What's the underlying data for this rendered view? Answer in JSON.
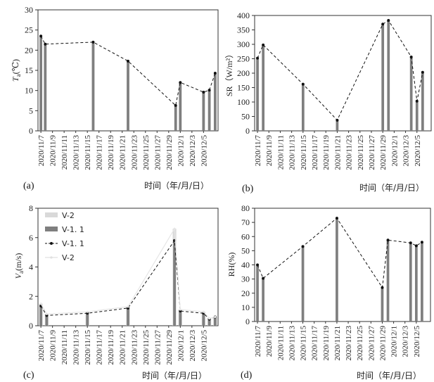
{
  "chart_data": [
    {
      "type": "bar",
      "panel_label": "(a)",
      "ylabel_main": "T",
      "ylabel_sub": "a",
      "ylabel_unit": "(℃)",
      "xlabel": "时间（年/月/日）",
      "ylim": [
        0,
        30
      ],
      "yticks": [
        0,
        5,
        10,
        15,
        20,
        25,
        30
      ],
      "categories": [
        "2020/11/7",
        "2020/11/9",
        "2020/11/11",
        "2020/11/13",
        "2020/11/15",
        "2020/11/17",
        "2020/11/19",
        "2020/11/21",
        "2020/11/23",
        "2020/11/25",
        "2020/11/27",
        "2020/11/29",
        "2020/12/1",
        "2020/12/3",
        "2020/12/5"
      ],
      "series": [
        {
          "style": "bar",
          "points": [
            [
              0,
              23.5
            ],
            [
              0.75,
              21.5
            ],
            [
              9,
              22
            ],
            [
              15,
              17.3
            ],
            [
              23.2,
              6.3
            ],
            [
              24,
              12
            ],
            [
              28,
              9.6
            ],
            [
              29,
              10.1
            ],
            [
              30,
              14.3
            ]
          ]
        },
        {
          "style": "dashed-line",
          "points": [
            [
              0,
              23.5
            ],
            [
              0.75,
              21.5
            ],
            [
              9,
              22
            ],
            [
              15,
              17.3
            ],
            [
              23.2,
              6.3
            ],
            [
              24,
              12
            ],
            [
              28,
              9.6
            ],
            [
              29,
              10.1
            ],
            [
              30,
              14.3
            ]
          ]
        }
      ]
    },
    {
      "type": "bar",
      "panel_label": "(b)",
      "ylabel_main": "SR",
      "ylabel_unit": "（W/m²）",
      "xlabel": "时间（年/月/日）",
      "ylim": [
        0,
        400
      ],
      "yticks": [
        0,
        50,
        100,
        150,
        200,
        250,
        300,
        350,
        400
      ],
      "categories": [
        "2020/11/7",
        "2020/11/9",
        "2020/11/11",
        "2020/11/13",
        "2020/11/15",
        "2020/11/17",
        "2020/11/19",
        "2020/11/21",
        "2020/11/23",
        "2020/11/25",
        "2020/11/27",
        "2020/11/29",
        "2020/12/1",
        "2020/12/3",
        "2020/12/5"
      ],
      "series": [
        {
          "style": "bar",
          "points": [
            [
              0,
              252
            ],
            [
              1,
              298
            ],
            [
              8,
              162
            ],
            [
              14,
              37
            ],
            [
              22,
              370
            ],
            [
              23,
              383
            ],
            [
              27,
              256
            ],
            [
              28,
              103
            ],
            [
              29,
              203
            ]
          ]
        },
        {
          "style": "dashed-line",
          "points": [
            [
              0,
              252
            ],
            [
              1,
              298
            ],
            [
              8,
              162
            ],
            [
              14,
              37
            ],
            [
              22,
              370
            ],
            [
              23,
              383
            ],
            [
              27,
              256
            ],
            [
              28,
              103
            ],
            [
              29,
              203
            ]
          ]
        }
      ]
    },
    {
      "type": "bar",
      "panel_label": "(c)",
      "ylabel_main": "V",
      "ylabel_sub": "a",
      "ylabel_unit": "(m/s)",
      "xlabel": "时间（年/月/日）",
      "ylim": [
        0,
        8
      ],
      "yticks": [
        0,
        2,
        4,
        6,
        8
      ],
      "categories": [
        "2020/11/7",
        "2020/11/9",
        "2020/11/11",
        "2020/11/13",
        "2020/11/15",
        "2020/11/17",
        "2020/11/19",
        "2020/11/21",
        "2020/11/23",
        "2020/11/25",
        "2020/11/27",
        "2020/11/29",
        "2020/12/1",
        "2020/12/3",
        "2020/12/5"
      ],
      "legend": [
        "V-2",
        "V-1. 1",
        "V-1. 1",
        "V-2"
      ],
      "series": [
        {
          "name": "V-2",
          "style": "bar-light",
          "points": [
            [
              0,
              1.5
            ],
            [
              1,
              0.8
            ],
            [
              8,
              0.95
            ],
            [
              15,
              1.3
            ],
            [
              23,
              6.6
            ],
            [
              24,
              1.1
            ],
            [
              28,
              0.95
            ],
            [
              29,
              0.5
            ],
            [
              30,
              0.6
            ]
          ]
        },
        {
          "name": "V-1. 1",
          "style": "bar",
          "points": [
            [
              0,
              1.35
            ],
            [
              1,
              0.7
            ],
            [
              8,
              0.85
            ],
            [
              15,
              1.2
            ],
            [
              23,
              5.8
            ],
            [
              24,
              1.0
            ],
            [
              28,
              0.85
            ],
            [
              29,
              0.45
            ],
            [
              30,
              0.6
            ]
          ]
        },
        {
          "name": "V-1. 1",
          "style": "dashed-line",
          "points": [
            [
              0,
              1.35
            ],
            [
              1,
              0.7
            ],
            [
              8,
              0.85
            ],
            [
              15,
              1.2
            ],
            [
              23,
              5.8
            ],
            [
              24,
              1.0
            ],
            [
              28,
              0.85
            ],
            [
              29,
              0.45
            ],
            [
              30,
              0.6
            ]
          ]
        },
        {
          "name": "V-2",
          "style": "light-line",
          "points": [
            [
              0,
              1.5
            ],
            [
              1,
              0.8
            ],
            [
              8,
              0.95
            ],
            [
              15,
              1.3
            ],
            [
              23,
              6.6
            ],
            [
              24,
              1.1
            ],
            [
              28,
              0.95
            ],
            [
              29,
              0.5
            ],
            [
              30,
              0.6
            ]
          ]
        }
      ]
    },
    {
      "type": "bar",
      "panel_label": "(d)",
      "ylabel_main": "RH",
      "ylabel_unit": "(%)",
      "xlabel": "时间（年/月/日）",
      "ylim": [
        0,
        80
      ],
      "yticks": [
        0,
        10,
        20,
        30,
        40,
        50,
        60,
        70,
        80
      ],
      "categories": [
        "2020/11/7",
        "2020/11/9",
        "2020/11/11",
        "2020/11/13",
        "2020/11/15",
        "2020/11/17",
        "2020/11/19",
        "2020/11/21",
        "2020/11/23",
        "2020/11/25",
        "2020/11/27",
        "2020/11/29",
        "2020/12/1",
        "2020/12/3",
        "2020/12/5"
      ],
      "series": [
        {
          "style": "bar",
          "points": [
            [
              0,
              40
            ],
            [
              1,
              30.5
            ],
            [
              8,
              53
            ],
            [
              14,
              73
            ],
            [
              22,
              24
            ],
            [
              23,
              57.5
            ],
            [
              27,
              55.5
            ],
            [
              28,
              53.5
            ],
            [
              29,
              56
            ]
          ]
        },
        {
          "style": "dashed-line",
          "points": [
            [
              0,
              40
            ],
            [
              1,
              30.5
            ],
            [
              8,
              53
            ],
            [
              14,
              73
            ],
            [
              22,
              24
            ],
            [
              23,
              57.5
            ],
            [
              27,
              55.5
            ],
            [
              28,
              53.5
            ],
            [
              29,
              56
            ]
          ]
        }
      ]
    }
  ]
}
